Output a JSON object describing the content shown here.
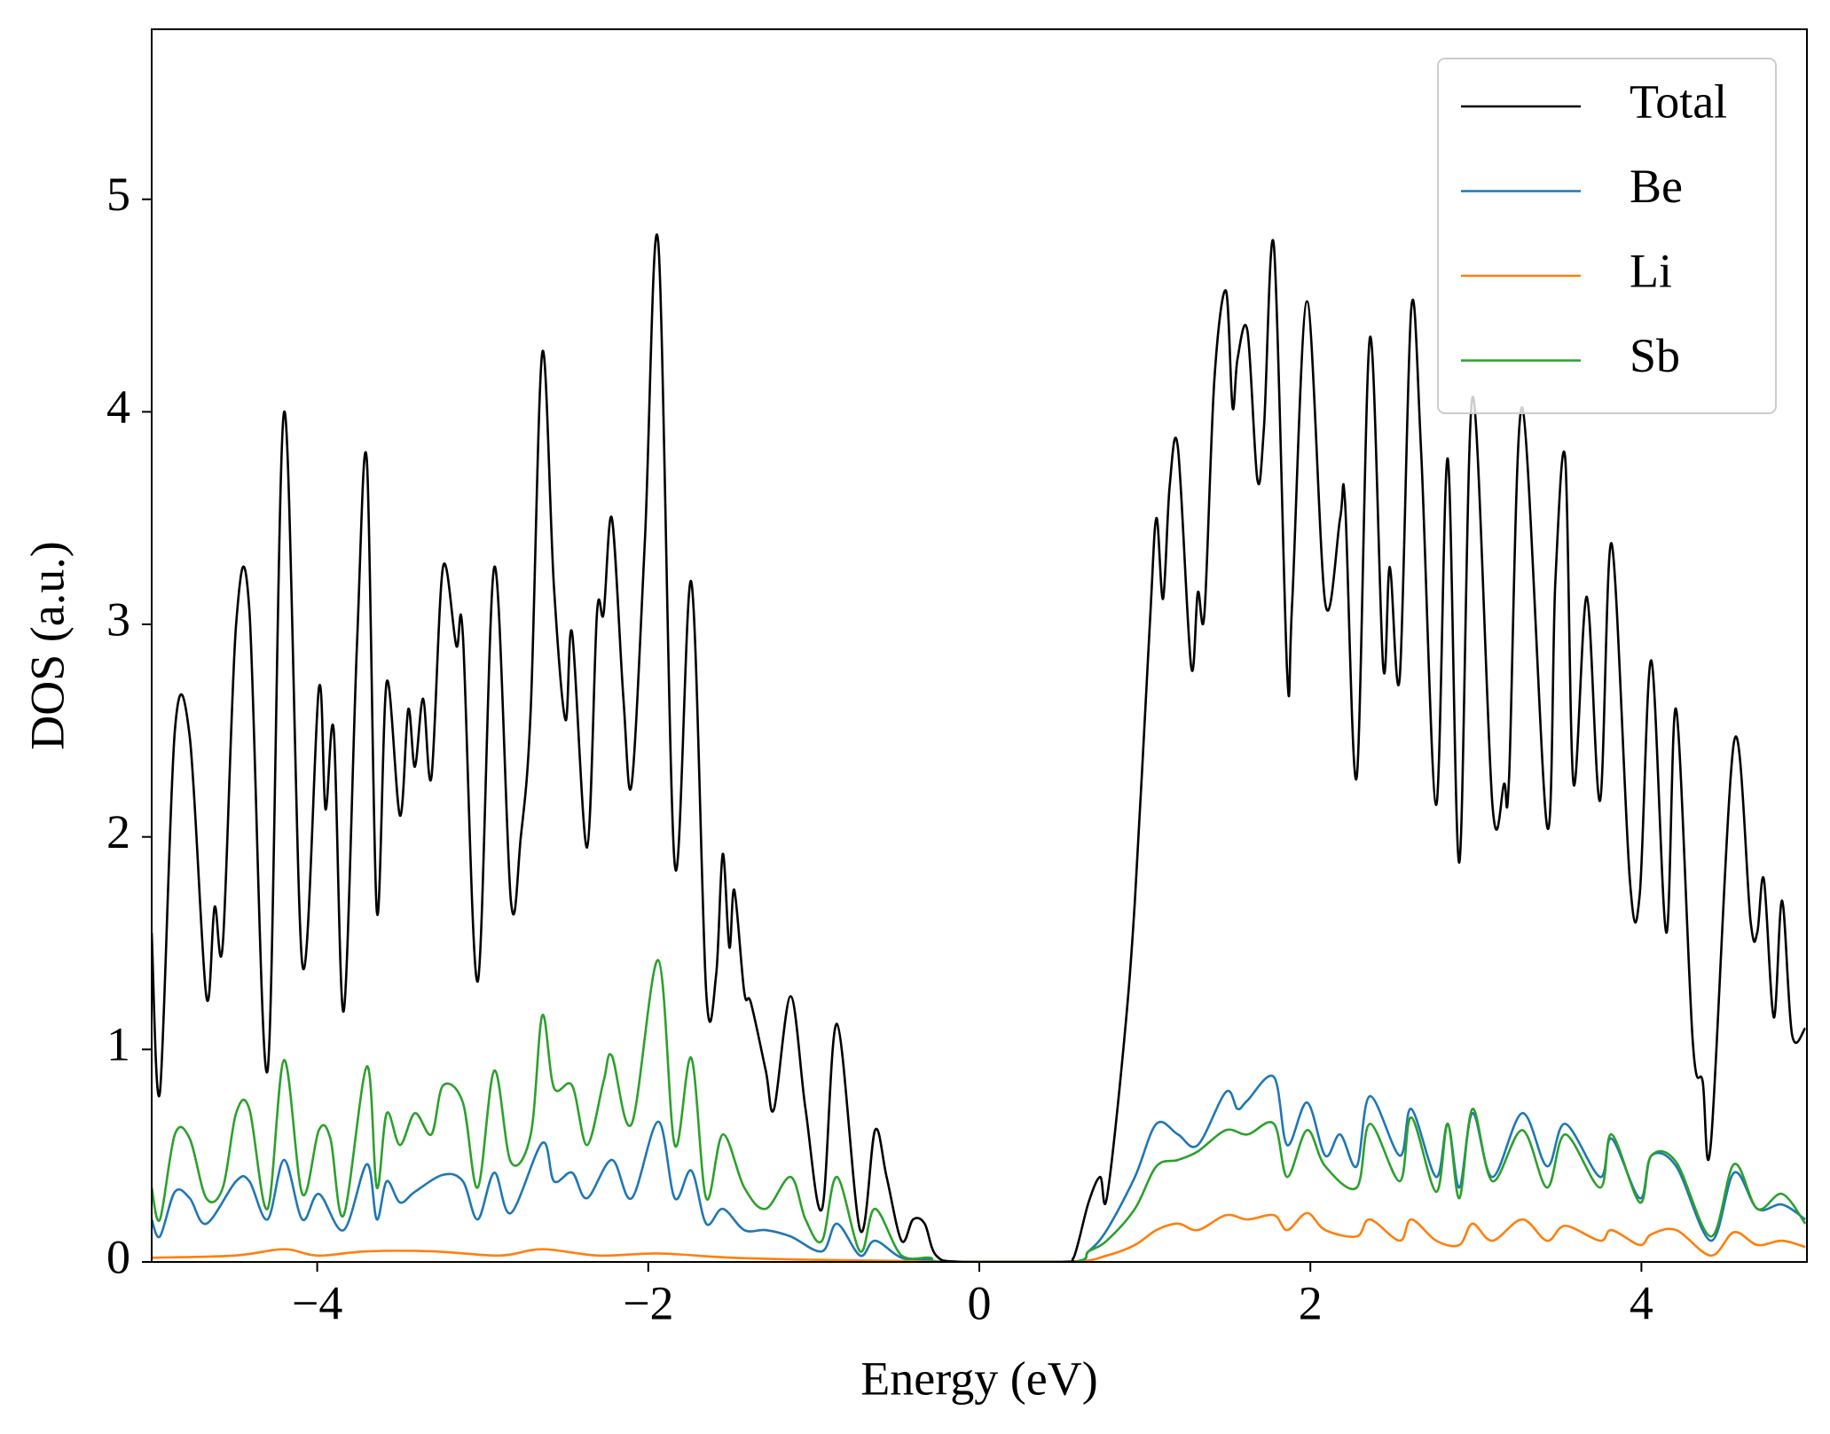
{
  "chart_data": {
    "type": "line",
    "xlabel": "Energy (eV)",
    "ylabel": "DOS (a.u.)",
    "xlim": [
      -5,
      5
    ],
    "ylim": [
      0,
      5.8
    ],
    "xticks": [
      {
        "value": -4,
        "label": "−4"
      },
      {
        "value": -2,
        "label": "−2"
      },
      0,
      2,
      4
    ],
    "yticks": [
      0,
      1,
      2,
      3,
      4,
      5
    ],
    "legend": "upper right",
    "series": [
      {
        "name": "Total",
        "color": "#000000",
        "x": [
          -5,
          -4.95,
          -4.86,
          -4.77,
          -4.67,
          -4.62,
          -4.57,
          -4.49,
          -4.41,
          -4.3,
          -4.2,
          -4.09,
          -3.99,
          -3.95,
          -3.9,
          -3.84,
          -3.76,
          -3.7,
          -3.64,
          -3.58,
          -3.5,
          -3.45,
          -3.41,
          -3.36,
          -3.31,
          -3.24,
          -3.16,
          -3.12,
          -3.03,
          -2.93,
          -2.83,
          -2.77,
          -2.71,
          -2.64,
          -2.57,
          -2.5,
          -2.46,
          -2.37,
          -2.31,
          -2.27,
          -2.22,
          -2.15,
          -2.1,
          -2.02,
          -1.94,
          -1.84,
          -1.74,
          -1.65,
          -1.59,
          -1.55,
          -1.51,
          -1.48,
          -1.42,
          -1.38,
          -1.29,
          -1.24,
          -1.14,
          -1.05,
          -0.95,
          -0.86,
          -0.72,
          -0.63,
          -0.56,
          -0.47,
          -0.4,
          -0.33,
          -0.26,
          -0.1,
          0.5,
          0.57,
          0.66,
          0.73,
          0.77,
          0.87,
          0.94,
          1.03,
          1.07,
          1.11,
          1.15,
          1.2,
          1.28,
          1.32,
          1.36,
          1.42,
          1.49,
          1.53,
          1.56,
          1.62,
          1.68,
          1.72,
          1.78,
          1.86,
          1.89,
          1.98,
          2.09,
          2.18,
          2.21,
          2.28,
          2.36,
          2.44,
          2.48,
          2.54,
          2.61,
          2.67,
          2.76,
          2.83,
          2.9,
          2.98,
          3.1,
          3.17,
          3.2,
          3.28,
          3.43,
          3.48,
          3.54,
          3.59,
          3.67,
          3.75,
          3.82,
          3.93,
          3.99,
          4.06,
          4.15,
          4.21,
          4.31,
          4.37,
          4.42,
          4.56,
          4.66,
          4.7,
          4.74,
          4.8,
          4.85,
          4.91,
          4.99
        ],
        "values": [
          1.55,
          0.8,
          2.5,
          2.47,
          1.25,
          1.67,
          1.5,
          3.0,
          3.07,
          0.9,
          4.0,
          1.4,
          2.7,
          2.13,
          2.5,
          1.18,
          2.9,
          3.77,
          1.65,
          2.73,
          2.1,
          2.6,
          2.33,
          2.65,
          2.28,
          3.27,
          2.9,
          2.95,
          1.32,
          3.27,
          1.7,
          2.0,
          2.6,
          4.28,
          3.18,
          2.55,
          2.96,
          1.95,
          3.05,
          3.05,
          3.5,
          2.65,
          2.25,
          3.4,
          4.8,
          1.87,
          3.2,
          1.27,
          1.35,
          1.92,
          1.48,
          1.75,
          1.27,
          1.22,
          0.9,
          0.72,
          1.25,
          0.72,
          0.25,
          1.12,
          0.15,
          0.62,
          0.4,
          0.1,
          0.2,
          0.18,
          0.03,
          0,
          0,
          0.02,
          0.28,
          0.4,
          0.3,
          1.0,
          1.7,
          3.0,
          3.5,
          3.12,
          3.65,
          3.83,
          2.8,
          3.15,
          3.05,
          4.15,
          4.57,
          4.02,
          4.25,
          4.38,
          3.68,
          3.93,
          4.78,
          2.77,
          3.1,
          4.52,
          3.1,
          3.5,
          3.57,
          2.28,
          4.35,
          2.8,
          3.27,
          2.75,
          4.49,
          3.8,
          2.15,
          3.78,
          1.88,
          4.07,
          2.15,
          2.25,
          2.27,
          4.02,
          2.05,
          3.2,
          3.78,
          2.25,
          3.13,
          2.17,
          3.38,
          1.8,
          1.73,
          2.83,
          1.55,
          2.6,
          1.04,
          0.85,
          0.56,
          2.45,
          1.6,
          1.55,
          1.8,
          1.15,
          1.7,
          1.07,
          1.1
        ]
      },
      {
        "name": "Be",
        "color": "#1f77b4",
        "x": [
          -5,
          -4.95,
          -4.86,
          -4.77,
          -4.67,
          -4.49,
          -4.41,
          -4.3,
          -4.2,
          -4.09,
          -3.99,
          -3.84,
          -3.7,
          -3.64,
          -3.58,
          -3.5,
          -3.41,
          -3.24,
          -3.12,
          -3.03,
          -2.93,
          -2.83,
          -2.64,
          -2.57,
          -2.46,
          -2.37,
          -2.22,
          -2.1,
          -1.94,
          -1.84,
          -1.74,
          -1.65,
          -1.55,
          -1.42,
          -1.29,
          -1.14,
          -0.95,
          -0.86,
          -0.72,
          -0.63,
          -0.47,
          -0.3,
          -0.2,
          0.55,
          0.66,
          0.77,
          0.94,
          1.07,
          1.2,
          1.32,
          1.49,
          1.56,
          1.62,
          1.78,
          1.86,
          1.98,
          2.09,
          2.18,
          2.28,
          2.36,
          2.54,
          2.61,
          2.76,
          2.83,
          2.9,
          2.98,
          3.1,
          3.28,
          3.43,
          3.54,
          3.75,
          3.82,
          3.99,
          4.06,
          4.21,
          4.42,
          4.56,
          4.7,
          4.85,
          4.99
        ],
        "values": [
          0.2,
          0.12,
          0.33,
          0.3,
          0.18,
          0.38,
          0.38,
          0.2,
          0.48,
          0.2,
          0.32,
          0.15,
          0.46,
          0.2,
          0.38,
          0.28,
          0.33,
          0.41,
          0.38,
          0.2,
          0.42,
          0.23,
          0.56,
          0.38,
          0.42,
          0.3,
          0.48,
          0.3,
          0.66,
          0.3,
          0.43,
          0.18,
          0.25,
          0.15,
          0.15,
          0.12,
          0.05,
          0.18,
          0.03,
          0.1,
          0.02,
          0.01,
          0,
          0,
          0.05,
          0.15,
          0.4,
          0.65,
          0.6,
          0.55,
          0.8,
          0.72,
          0.76,
          0.87,
          0.55,
          0.75,
          0.5,
          0.6,
          0.45,
          0.78,
          0.5,
          0.72,
          0.4,
          0.65,
          0.35,
          0.7,
          0.4,
          0.7,
          0.45,
          0.65,
          0.4,
          0.58,
          0.3,
          0.5,
          0.45,
          0.1,
          0.42,
          0.25,
          0.27,
          0.2
        ]
      },
      {
        "name": "Li",
        "color": "#ff7f0e",
        "x": [
          -5,
          -4.5,
          -4.2,
          -4,
          -3.7,
          -3.3,
          -2.9,
          -2.64,
          -2.3,
          -1.94,
          -1.5,
          -1,
          -0.5,
          -0.2,
          0.55,
          0.77,
          0.94,
          1.07,
          1.2,
          1.32,
          1.49,
          1.62,
          1.78,
          1.86,
          1.98,
          2.09,
          2.28,
          2.36,
          2.54,
          2.61,
          2.76,
          2.9,
          2.98,
          3.1,
          3.28,
          3.43,
          3.54,
          3.75,
          3.82,
          3.99,
          4.06,
          4.21,
          4.42,
          4.56,
          4.7,
          4.85,
          4.99
        ],
        "values": [
          0.02,
          0.03,
          0.06,
          0.03,
          0.05,
          0.05,
          0.03,
          0.06,
          0.03,
          0.04,
          0.02,
          0.01,
          0.005,
          0,
          0,
          0.03,
          0.08,
          0.15,
          0.18,
          0.15,
          0.22,
          0.2,
          0.22,
          0.15,
          0.23,
          0.15,
          0.12,
          0.2,
          0.1,
          0.2,
          0.1,
          0.08,
          0.18,
          0.1,
          0.2,
          0.1,
          0.17,
          0.1,
          0.15,
          0.08,
          0.13,
          0.15,
          0.03,
          0.14,
          0.08,
          0.1,
          0.07
        ]
      },
      {
        "name": "Sb",
        "color": "#2ca02c",
        "x": [
          -5,
          -4.95,
          -4.86,
          -4.77,
          -4.67,
          -4.57,
          -4.49,
          -4.41,
          -4.3,
          -4.2,
          -4.09,
          -3.99,
          -3.92,
          -3.84,
          -3.7,
          -3.64,
          -3.58,
          -3.5,
          -3.41,
          -3.31,
          -3.24,
          -3.12,
          -3.03,
          -2.93,
          -2.83,
          -2.71,
          -2.64,
          -2.57,
          -2.46,
          -2.37,
          -2.27,
          -2.22,
          -2.1,
          -1.94,
          -1.84,
          -1.74,
          -1.65,
          -1.55,
          -1.42,
          -1.29,
          -1.14,
          -1.05,
          -0.95,
          -0.86,
          -0.72,
          -0.63,
          -0.47,
          -0.3,
          -0.2,
          0.55,
          0.66,
          0.77,
          0.94,
          1.07,
          1.2,
          1.32,
          1.49,
          1.62,
          1.78,
          1.86,
          1.98,
          2.09,
          2.28,
          2.36,
          2.54,
          2.61,
          2.76,
          2.83,
          2.9,
          2.98,
          3.1,
          3.28,
          3.43,
          3.54,
          3.75,
          3.82,
          3.99,
          4.06,
          4.21,
          4.42,
          4.56,
          4.7,
          4.85,
          4.99
        ],
        "values": [
          0.35,
          0.2,
          0.6,
          0.58,
          0.3,
          0.35,
          0.7,
          0.72,
          0.25,
          0.95,
          0.32,
          0.62,
          0.58,
          0.22,
          0.92,
          0.35,
          0.7,
          0.55,
          0.7,
          0.6,
          0.83,
          0.75,
          0.35,
          0.9,
          0.47,
          0.6,
          1.16,
          0.82,
          0.83,
          0.55,
          0.85,
          0.97,
          0.65,
          1.42,
          0.55,
          0.96,
          0.3,
          0.6,
          0.35,
          0.25,
          0.4,
          0.2,
          0.1,
          0.4,
          0.05,
          0.25,
          0.03,
          0.02,
          0,
          0,
          0.05,
          0.1,
          0.25,
          0.45,
          0.48,
          0.52,
          0.62,
          0.6,
          0.65,
          0.4,
          0.62,
          0.45,
          0.35,
          0.65,
          0.38,
          0.68,
          0.33,
          0.65,
          0.3,
          0.72,
          0.38,
          0.62,
          0.35,
          0.6,
          0.35,
          0.6,
          0.28,
          0.5,
          0.47,
          0.12,
          0.46,
          0.25,
          0.32,
          0.18
        ]
      }
    ]
  }
}
